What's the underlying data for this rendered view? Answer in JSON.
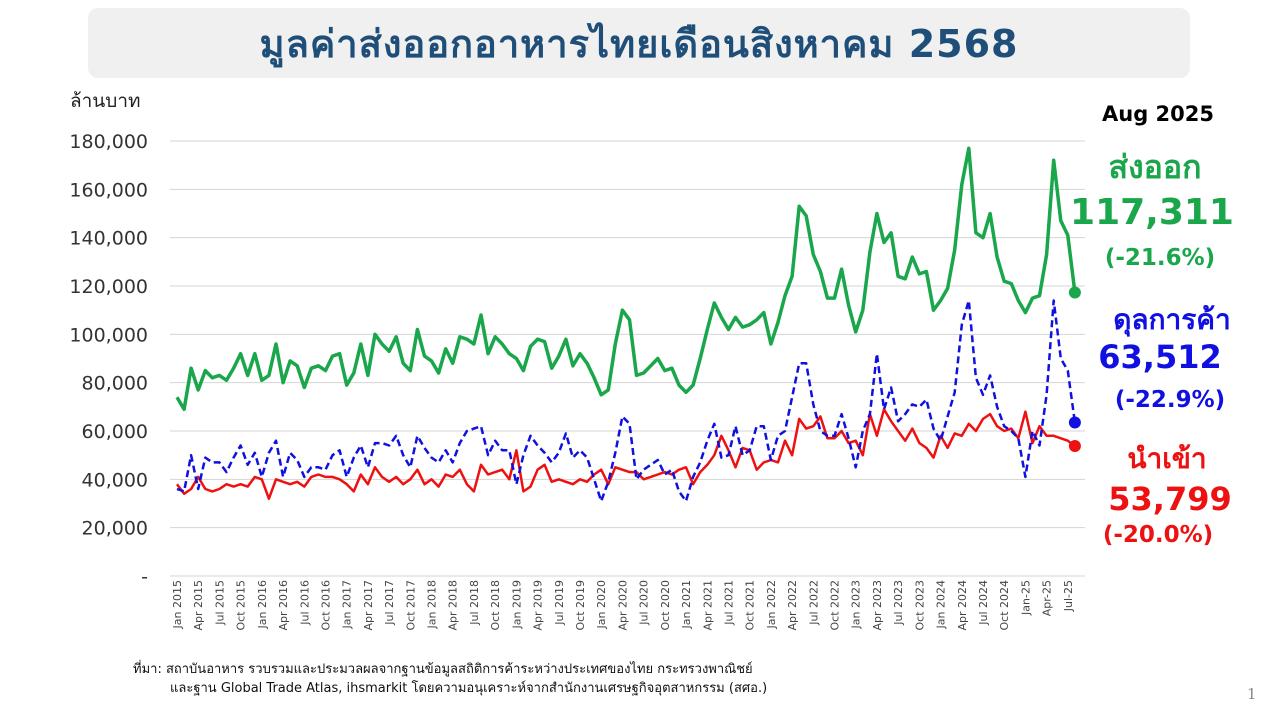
{
  "chart_data": {
    "type": "line",
    "title": "มูลค่าส่งออกอาหารไทยเดือนสิงหาคม 2568",
    "ylabel": "ล้านบาท",
    "ylim": [
      0,
      180000
    ],
    "grid": true,
    "value_scale": 1000,
    "yticks": [
      0,
      20000,
      40000,
      60000,
      80000,
      100000,
      120000,
      140000,
      160000,
      180000
    ],
    "ytick_labels": [
      "-",
      "20,000",
      "40,000",
      "60,000",
      "80,000",
      "100,000",
      "120,000",
      "140,000",
      "160,000",
      "180,000"
    ],
    "x_start": "Jan 2015",
    "x_tick_every_months": 3,
    "xtick_labels": [
      "Jan 2015",
      "Apr 2015",
      "Jul 2015",
      "Oct 2015",
      "Jan 2016",
      "Apr 2016",
      "Jul 2016",
      "Oct 2016",
      "Jan 2017",
      "Apr 2017",
      "Jul 2017",
      "Oct 2017",
      "Jan 2018",
      "Apr 2018",
      "Jul 2018",
      "Oct 2018",
      "Jan 2019",
      "Apr 2019",
      "Jul 2019",
      "Oct 2019",
      "Jan 2020",
      "Apr 2020",
      "Jul 2020",
      "Oct 2020",
      "Jan 2021",
      "Apr 2021",
      "Jul 2021",
      "Oct 2021",
      "Jan 2022",
      "Apr 2022",
      "Jul 2022",
      "Oct 2022",
      "Jan 2023",
      "Apr 2023",
      "Jul 2023",
      "Oct 2023",
      "Jan 2024",
      "Apr 2024",
      "Jul 2024",
      "Oct 2024",
      "Jan-25",
      "Apr-25",
      "Jul-25"
    ],
    "series": [
      {
        "name": "ส่งออก",
        "color": "#1aa64b",
        "style": "solid",
        "values": [
          74,
          69,
          86,
          77,
          85,
          82,
          83,
          81,
          86,
          92,
          83,
          92,
          81,
          83,
          96,
          80,
          89,
          87,
          78,
          86,
          87,
          85,
          91,
          92,
          79,
          84,
          96,
          83,
          100,
          96,
          93,
          99,
          88,
          85,
          102,
          91,
          89,
          84,
          94,
          88,
          99,
          98,
          96,
          108,
          92,
          99,
          96,
          92,
          90,
          85,
          95,
          98,
          97,
          86,
          91,
          98,
          87,
          92,
          88,
          82,
          75,
          77,
          96,
          110,
          106,
          83,
          84,
          87,
          90,
          85,
          86,
          79,
          76,
          79,
          90,
          102,
          113,
          107,
          102,
          107,
          103,
          104,
          106,
          109,
          96,
          105,
          116,
          124,
          153,
          149,
          133,
          126,
          115,
          115,
          127,
          112,
          101,
          110,
          134,
          150,
          138,
          142,
          124,
          123,
          132,
          125,
          126,
          110,
          114,
          119,
          135,
          162,
          177,
          142,
          140,
          150,
          132,
          122,
          121,
          114,
          109,
          115,
          116,
          133,
          172,
          147,
          141,
          117.311
        ]
      },
      {
        "name": "ดุลการค้า",
        "color": "#1010e0",
        "style": "dashed",
        "values": [
          36,
          35,
          50,
          36,
          49,
          47,
          47,
          43,
          49,
          54,
          46,
          51,
          41,
          51,
          56,
          41,
          51,
          48,
          41,
          45,
          45,
          44,
          50,
          52,
          41,
          49,
          54,
          45,
          55,
          55,
          54,
          58,
          50,
          45,
          58,
          53,
          49,
          47,
          52,
          47,
          55,
          60,
          61,
          62,
          50,
          56,
          52,
          52,
          38,
          50,
          58,
          54,
          51,
          47,
          51,
          59,
          49,
          52,
          49,
          40,
          31,
          39,
          51,
          66,
          63,
          40,
          44,
          46,
          48,
          42,
          44,
          35,
          31,
          41,
          47,
          56,
          63,
          49,
          50,
          62,
          50,
          52,
          62,
          62,
          48,
          58,
          60,
          74,
          88,
          88,
          71,
          60,
          58,
          58,
          67,
          57,
          45,
          60,
          67,
          92,
          69,
          78,
          64,
          67,
          71,
          70,
          73,
          61,
          56,
          66,
          76,
          104,
          114,
          82,
          75,
          83,
          70,
          62,
          60,
          57,
          41,
          60,
          54,
          75,
          114,
          90,
          85,
          63.512
        ]
      },
      {
        "name": "นำเข้า",
        "color": "#ee1111",
        "style": "solid",
        "values": [
          38,
          34,
          36,
          41,
          36,
          35,
          36,
          38,
          37,
          38,
          37,
          41,
          40,
          32,
          40,
          39,
          38,
          39,
          37,
          41,
          42,
          41,
          41,
          40,
          38,
          35,
          42,
          38,
          45,
          41,
          39,
          41,
          38,
          40,
          44,
          38,
          40,
          37,
          42,
          41,
          44,
          38,
          35,
          46,
          42,
          43,
          44,
          40,
          52,
          35,
          37,
          44,
          46,
          39,
          40,
          39,
          38,
          40,
          39,
          42,
          44,
          38,
          45,
          44,
          43,
          43,
          40,
          41,
          42,
          43,
          42,
          44,
          45,
          38,
          43,
          46,
          50,
          58,
          52,
          45,
          53,
          52,
          44,
          47,
          48,
          47,
          56,
          50,
          65,
          61,
          62,
          66,
          57,
          57,
          60,
          55,
          56,
          50,
          67,
          58,
          69,
          64,
          60,
          56,
          61,
          55,
          53,
          49,
          58,
          53,
          59,
          58,
          63,
          60,
          65,
          67,
          62,
          60,
          61,
          57,
          68,
          55,
          62,
          58,
          58,
          57,
          56,
          53.799
        ]
      }
    ],
    "annotations": {
      "period": "Aug 2025",
      "export_label": "ส่งออก",
      "export_value": "117,311",
      "export_change": "(-21.6%)",
      "balance_label": "ดุลการค้า",
      "balance_value": "63,512",
      "balance_change": "(-22.9%)",
      "import_label": "นำเข้า",
      "import_value": "53,799",
      "import_change": "(-20.0%)"
    }
  },
  "source_line1": "ที่มา: สถาบันอาหาร รวบรวมและประมวลผลจากฐานข้อมูลสถิติการค้าระหว่างประเทศของไทย กระทรวงพาณิชย์",
  "source_line2": "และฐาน Global  Trade Atlas, ihsmarkit  โดยความอนุเคราะห์จากสำนักงานเศรษฐกิจอุตสาหกรรม (สศอ.)",
  "page_number": "1"
}
